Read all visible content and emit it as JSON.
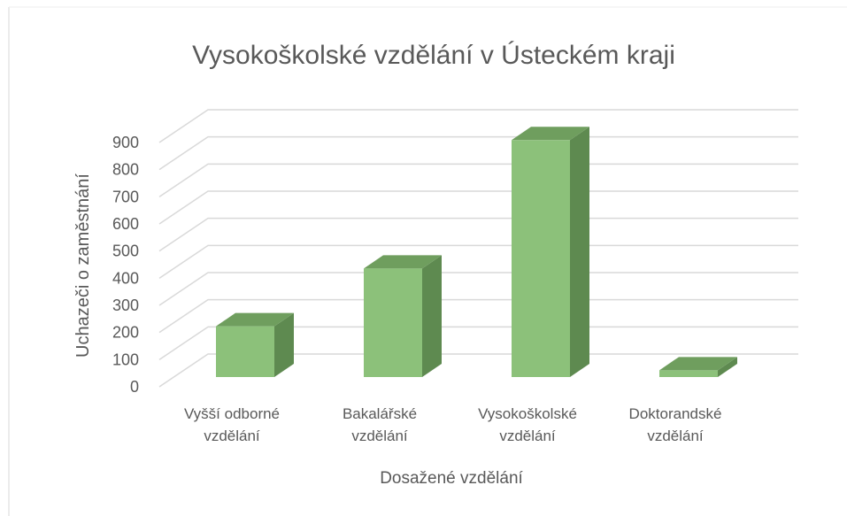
{
  "chart_data": {
    "type": "bar3d",
    "title": "Vysokoškolské vzdělání v Ústeckém kraji",
    "x_label": "Dosažené vzdělání",
    "y_label": "Uchazeči o zaměstnání",
    "categories": [
      "Vyšší odborné vzdělání",
      "Bakalářské vzdělání",
      "Vysokoškolské vzdělání",
      "Doktorandské vzdělání"
    ],
    "values": [
      187,
      400,
      873,
      25
    ],
    "color": "#8cc17a",
    "ylim": [
      0,
      900
    ],
    "yticks": [
      0,
      100,
      200,
      300,
      400,
      500,
      600,
      700,
      800,
      900
    ],
    "grid": true
  }
}
